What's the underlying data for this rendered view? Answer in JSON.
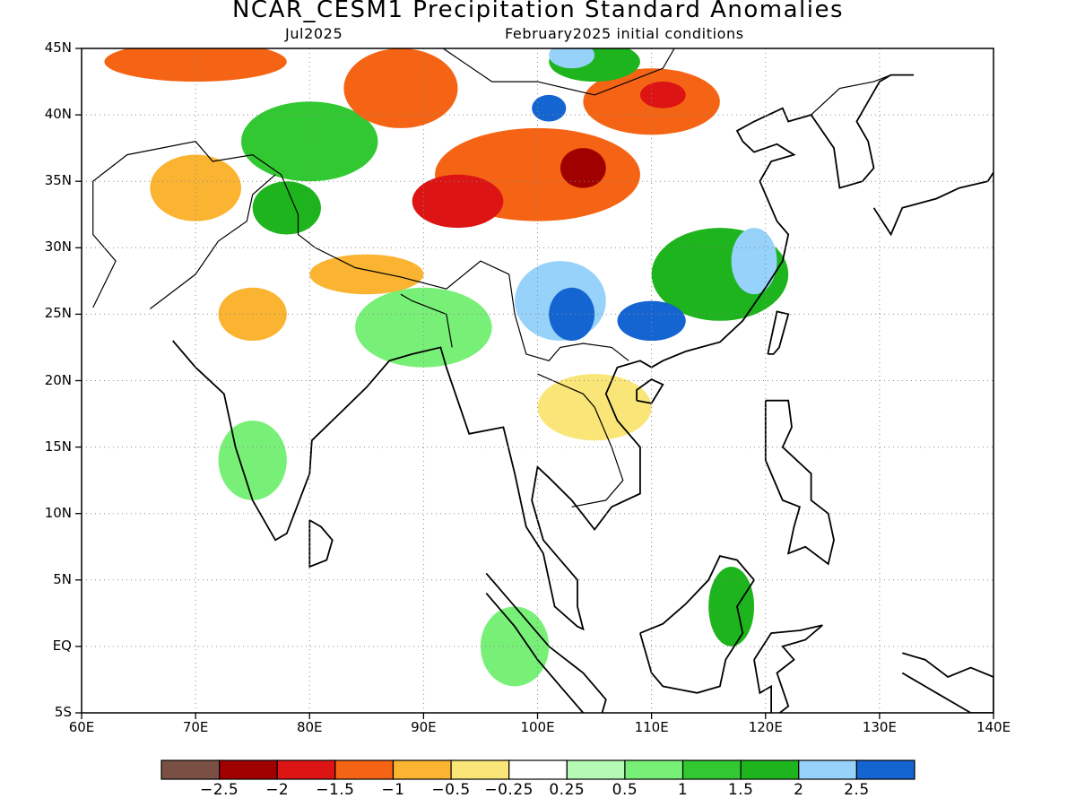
{
  "title": "NCAR_CESM1 Precipitation Standard Anomalies",
  "subtitle_left": "Jul2025",
  "subtitle_right": "February2025 initial conditions",
  "map": {
    "lon_range": [
      60,
      140
    ],
    "lat_range": [
      -5,
      45
    ],
    "lat_labels": [
      {
        "lat": 45,
        "text": "45N"
      },
      {
        "lat": 40,
        "text": "40N"
      },
      {
        "lat": 35,
        "text": "35N"
      },
      {
        "lat": 30,
        "text": "30N"
      },
      {
        "lat": 25,
        "text": "25N"
      },
      {
        "lat": 20,
        "text": "20N"
      },
      {
        "lat": 15,
        "text": "15N"
      },
      {
        "lat": 10,
        "text": "10N"
      },
      {
        "lat": 5,
        "text": "5N"
      },
      {
        "lat": 0,
        "text": "EQ"
      },
      {
        "lat": -5,
        "text": "5S"
      }
    ],
    "lon_labels": [
      {
        "lon": 60,
        "text": "60E"
      },
      {
        "lon": 70,
        "text": "70E"
      },
      {
        "lon": 80,
        "text": "80E"
      },
      {
        "lon": 90,
        "text": "90E"
      },
      {
        "lon": 100,
        "text": "100E"
      },
      {
        "lon": 110,
        "text": "110E"
      },
      {
        "lon": 120,
        "text": "120E"
      },
      {
        "lon": 130,
        "text": "130E"
      },
      {
        "lon": 140,
        "text": "140E"
      }
    ],
    "grid": "dotted",
    "projection": "lat-lon",
    "anomaly_regions": [
      {
        "lon": 100,
        "lat": 35.5,
        "rx": 9,
        "ry": 3.5,
        "value": -1.5
      },
      {
        "lon": 93,
        "lat": 33.5,
        "rx": 4,
        "ry": 2,
        "value": -2
      },
      {
        "lon": 104,
        "lat": 36,
        "rx": 2,
        "ry": 1.5,
        "value": -2.5
      },
      {
        "lon": 88,
        "lat": 42,
        "rx": 5,
        "ry": 3,
        "value": -1.5
      },
      {
        "lon": 110,
        "lat": 41,
        "rx": 6,
        "ry": 2.5,
        "value": -1.5
      },
      {
        "lon": 111,
        "lat": 41.5,
        "rx": 2,
        "ry": 1,
        "value": -2
      },
      {
        "lon": 70,
        "lat": 44,
        "rx": 8,
        "ry": 1.5,
        "value": -1.5
      },
      {
        "lon": 70,
        "lat": 34.5,
        "rx": 4,
        "ry": 2.5,
        "value": -1
      },
      {
        "lon": 75,
        "lat": 25,
        "rx": 3,
        "ry": 2,
        "value": -1
      },
      {
        "lon": 85,
        "lat": 28,
        "rx": 5,
        "ry": 1.5,
        "value": -1
      },
      {
        "lon": 105,
        "lat": 18,
        "rx": 5,
        "ry": 2.5,
        "value": -0.5
      },
      {
        "lon": 80,
        "lat": 38,
        "rx": 6,
        "ry": 3,
        "value": 1
      },
      {
        "lon": 78,
        "lat": 33,
        "rx": 3,
        "ry": 2,
        "value": 1.5
      },
      {
        "lon": 116,
        "lat": 28,
        "rx": 6,
        "ry": 3.5,
        "value": 1.5
      },
      {
        "lon": 119,
        "lat": 29,
        "rx": 2,
        "ry": 2.5,
        "value": 2
      },
      {
        "lon": 102,
        "lat": 26,
        "rx": 4,
        "ry": 3,
        "value": 2
      },
      {
        "lon": 103,
        "lat": 25,
        "rx": 2,
        "ry": 2,
        "value": 2.5
      },
      {
        "lon": 110,
        "lat": 24.5,
        "rx": 3,
        "ry": 1.5,
        "value": 2.5
      },
      {
        "lon": 105,
        "lat": 44,
        "rx": 4,
        "ry": 1.5,
        "value": 1.5
      },
      {
        "lon": 103,
        "lat": 44.5,
        "rx": 2,
        "ry": 1,
        "value": 2
      },
      {
        "lon": 101,
        "lat": 40.5,
        "rx": 1.5,
        "ry": 1,
        "value": 2.5
      },
      {
        "lon": 90,
        "lat": 24,
        "rx": 6,
        "ry": 3,
        "value": 0.5
      },
      {
        "lon": 75,
        "lat": 14,
        "rx": 3,
        "ry": 3,
        "value": 0.5
      },
      {
        "lon": 98,
        "lat": 0,
        "rx": 3,
        "ry": 3,
        "value": 0.5
      },
      {
        "lon": 117,
        "lat": 3,
        "rx": 2,
        "ry": 3,
        "value": 1.5
      }
    ]
  },
  "colorbar": {
    "colors": [
      "#7a5045",
      "#a00000",
      "#dc1414",
      "#f56414",
      "#fab432",
      "#fae678",
      "#ffffff",
      "#b4fab4",
      "#78f078",
      "#32c832",
      "#1eb41e",
      "#96d2fa",
      "#1464d2"
    ],
    "labels": [
      "−2.5",
      "−2",
      "−1.5",
      "−1",
      "−0.5",
      "−0.25",
      "0.25",
      "0.5",
      "1",
      "1.5",
      "2",
      "2.5"
    ]
  }
}
